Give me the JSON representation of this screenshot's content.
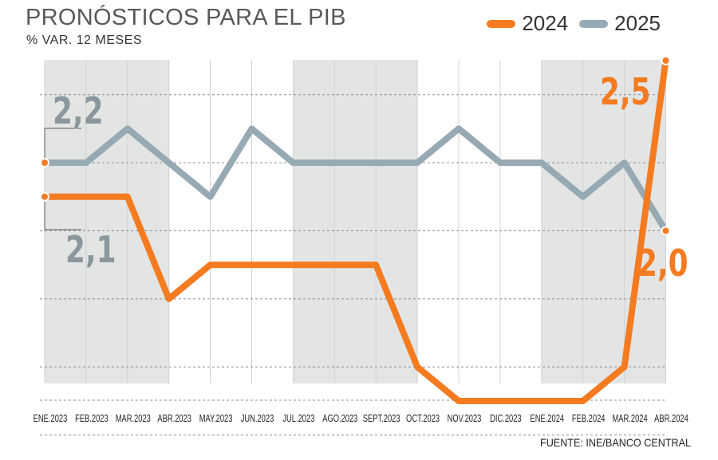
{
  "header": {
    "title": "PRONÓSTICOS PARA EL PIB",
    "subtitle": "% VAR. 12 MESES"
  },
  "legend": [
    {
      "label": "2024",
      "color": "#f47b20"
    },
    {
      "label": "2025",
      "color": "#97a9b2"
    }
  ],
  "source": "FUENTE: INE/BANCO CENTRAL",
  "colors": {
    "series_2024": "#f47b20",
    "series_2025": "#97a9b2",
    "band": "#e3e5e5",
    "grid": "#8c8c8c",
    "annotation_gray": "#8b979c"
  },
  "chart_data": {
    "type": "line",
    "title": "PRONÓSTICOS PARA EL PIB",
    "subtitle": "% VAR. 12 MESES",
    "categories": [
      "ENE.2023",
      "FEB.2023",
      "MAR.2023",
      "ABR.2023",
      "MAY.2023",
      "JUN.2023",
      "JUL.2023",
      "AGO.2023",
      "SEPT.2023",
      "OCT.2023",
      "NOV.2023",
      "DIC.2023",
      "ENE.2024",
      "FEB.2024",
      "MAR.2024",
      "ABR.2024"
    ],
    "series": [
      {
        "name": "2024",
        "color": "#f47b20",
        "values": [
          2.1,
          2.1,
          2.1,
          1.8,
          1.9,
          1.9,
          1.9,
          1.9,
          1.9,
          1.6,
          1.5,
          1.5,
          1.5,
          1.5,
          1.6,
          2.5
        ]
      },
      {
        "name": "2025",
        "color": "#97a9b2",
        "values": [
          2.2,
          2.2,
          2.3,
          2.2,
          2.1,
          2.3,
          2.2,
          2.2,
          2.2,
          2.2,
          2.3,
          2.2,
          2.2,
          2.1,
          2.2,
          2.0
        ]
      }
    ],
    "annotations": [
      {
        "text": "2,2",
        "series": "2025",
        "index": 0,
        "color": "#8b979c"
      },
      {
        "text": "2,1",
        "series": "2024",
        "index": 0,
        "color": "#8b979c"
      },
      {
        "text": "2,5",
        "series": "2024",
        "index": 15,
        "color": "#f47b20"
      },
      {
        "text": "2,0",
        "series": "2025",
        "index": 15,
        "color": "#f47b20"
      }
    ],
    "shaded_categories": [
      0,
      1,
      2,
      6,
      7,
      8,
      12,
      13,
      14
    ],
    "ylim": [
      1.2,
      2.6
    ],
    "grid": true,
    "legend_position": "top-right",
    "xlabel": "",
    "ylabel": ""
  }
}
